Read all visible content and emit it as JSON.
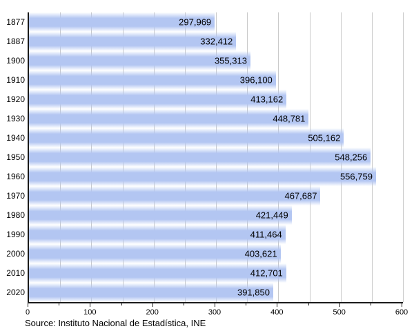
{
  "chart_data": {
    "type": "bar",
    "orientation": "horizontal",
    "title": "",
    "xlabel": "",
    "ylabel": "",
    "categories": [
      "1877",
      "1887",
      "1900",
      "1910",
      "1920",
      "1930",
      "1940",
      "1950",
      "1960",
      "1970",
      "1980",
      "1990",
      "2000",
      "2010",
      "2020"
    ],
    "values": [
      297969,
      332412,
      355313,
      396100,
      413162,
      448781,
      505162,
      548256,
      556759,
      467687,
      421449,
      411464,
      403621,
      412701,
      391850
    ],
    "value_labels": [
      "297,969",
      "332,412",
      "355,313",
      "396,100",
      "413,162",
      "448,781",
      "505,162",
      "548,256",
      "556,759",
      "467,687",
      "421,449",
      "411,464",
      "403,621",
      "412,701",
      "391,850"
    ],
    "x_tick_labels": [
      "0",
      "100",
      "200",
      "300",
      "400",
      "500",
      "600"
    ],
    "xlim": [
      0,
      600
    ],
    "grid_step": 50,
    "major_tick_step": 100,
    "minor_tick_step": 50,
    "grid_on": true,
    "legend": "none",
    "axis_value_divisor": 1000,
    "source": "Source: Instituto Nacional de Estadística, INE",
    "bar_color": "#b3c6f2",
    "grid_color": "#c9c9c9",
    "axis_color": "#1a1a1a",
    "text_color": "#000000"
  }
}
